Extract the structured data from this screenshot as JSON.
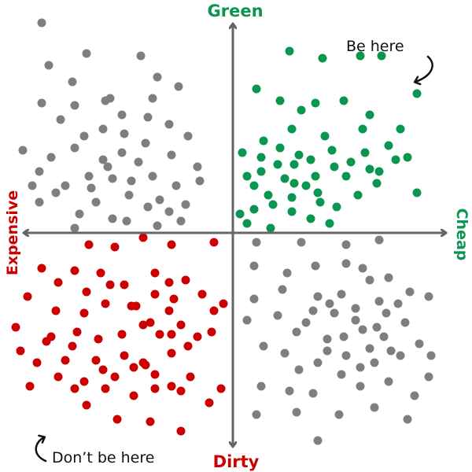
{
  "chart_data": {
    "type": "scatter",
    "axes": {
      "top": "Green",
      "bottom": "Dirty",
      "left": "Expensive",
      "right": "Cheap"
    },
    "annotations": [
      {
        "text": "Be here",
        "quadrant": "top-right"
      },
      {
        "text": "Don’t be here",
        "quadrant": "bottom-left"
      }
    ],
    "grid": false,
    "xlim": [
      -1,
      1
    ],
    "ylim": [
      -1,
      1
    ],
    "series": [
      {
        "quadrant": "top-left",
        "color": "#7f7f7f",
        "points": [
          [
            -0.81,
            0.89
          ],
          [
            -0.62,
            0.76
          ],
          [
            -0.68,
            0.64
          ],
          [
            -0.54,
            0.56
          ],
          [
            -0.39,
            0.75
          ],
          [
            -0.32,
            0.66
          ],
          [
            -0.78,
            0.71
          ],
          [
            -0.67,
            0.54
          ],
          [
            -0.52,
            0.57
          ],
          [
            -0.47,
            0.5
          ],
          [
            -0.34,
            0.57
          ],
          [
            -0.23,
            0.62
          ],
          [
            -0.81,
            0.55
          ],
          [
            -0.73,
            0.48
          ],
          [
            -0.63,
            0.41
          ],
          [
            -0.55,
            0.44
          ],
          [
            -0.46,
            0.42
          ],
          [
            -0.36,
            0.49
          ],
          [
            -0.27,
            0.46
          ],
          [
            -0.19,
            0.41
          ],
          [
            -0.89,
            0.35
          ],
          [
            -0.77,
            0.32
          ],
          [
            -0.67,
            0.36
          ],
          [
            -0.55,
            0.31
          ],
          [
            -0.47,
            0.34
          ],
          [
            -0.37,
            0.38
          ],
          [
            -0.26,
            0.33
          ],
          [
            -0.15,
            0.28
          ],
          [
            -0.82,
            0.26
          ],
          [
            -0.71,
            0.2
          ],
          [
            -0.61,
            0.24
          ],
          [
            -0.51,
            0.23
          ],
          [
            -0.43,
            0.22
          ],
          [
            -0.34,
            0.24
          ],
          [
            -0.24,
            0.2
          ],
          [
            -0.14,
            0.22
          ],
          [
            -0.58,
            0.13
          ],
          [
            -0.44,
            0.16
          ],
          [
            -0.31,
            0.14
          ],
          [
            -0.65,
            0.08
          ],
          [
            -0.75,
            0.17
          ],
          [
            -0.85,
            0.2
          ],
          [
            -0.27,
            0.09
          ],
          [
            -0.45,
            0.05
          ],
          [
            -0.32,
            0.03
          ],
          [
            -0.22,
            0.05
          ],
          [
            -0.82,
            0.13
          ],
          [
            -0.53,
            0.28
          ],
          [
            -0.4,
            0.3
          ],
          [
            -0.6,
            0.19
          ],
          [
            -0.51,
            0.06
          ],
          [
            -0.67,
            0.02
          ],
          [
            -0.36,
            0.11
          ],
          [
            -0.2,
            0.12
          ]
        ]
      },
      {
        "quadrant": "top-right",
        "color": "#0a9650",
        "points": [
          [
            0.24,
            0.77
          ],
          [
            0.38,
            0.74
          ],
          [
            0.54,
            0.75
          ],
          [
            0.63,
            0.75
          ],
          [
            0.78,
            0.59
          ],
          [
            0.1,
            0.61
          ],
          [
            0.2,
            0.56
          ],
          [
            0.35,
            0.55
          ],
          [
            0.47,
            0.56
          ],
          [
            0.58,
            0.5
          ],
          [
            0.29,
            0.52
          ],
          [
            0.13,
            0.39
          ],
          [
            0.25,
            0.44
          ],
          [
            0.39,
            0.41
          ],
          [
            0.55,
            0.44
          ],
          [
            0.71,
            0.44
          ],
          [
            0.04,
            0.34
          ],
          [
            0.12,
            0.32
          ],
          [
            0.2,
            0.36
          ],
          [
            0.26,
            0.29
          ],
          [
            0.33,
            0.31
          ],
          [
            0.42,
            0.35
          ],
          [
            0.56,
            0.34
          ],
          [
            0.69,
            0.31
          ],
          [
            0.09,
            0.2
          ],
          [
            0.15,
            0.16
          ],
          [
            0.26,
            0.21
          ],
          [
            0.35,
            0.24
          ],
          [
            0.43,
            0.28
          ],
          [
            0.61,
            0.21
          ],
          [
            0.78,
            0.17
          ],
          [
            0.03,
            0.08
          ],
          [
            0.09,
            0.1
          ],
          [
            0.17,
            0.12
          ],
          [
            0.25,
            0.15
          ],
          [
            0.37,
            0.13
          ],
          [
            0.53,
            0.16
          ],
          [
            0.62,
            0.26
          ],
          [
            0.44,
            0.11
          ],
          [
            0.06,
            0.04
          ],
          [
            0.16,
            0.02
          ],
          [
            0.25,
            0.09
          ],
          [
            0.33,
            0.06
          ],
          [
            0.41,
            0.04
          ],
          [
            0.74,
            0.32
          ],
          [
            0.06,
            0.24
          ],
          [
            0.19,
            0.29
          ],
          [
            0.31,
            0.2
          ],
          [
            0.48,
            0.24
          ],
          [
            0.58,
            0.27
          ],
          [
            0.12,
            0.26
          ],
          [
            0.22,
            0.23
          ],
          [
            0.28,
            0.33
          ],
          [
            0.36,
            0.17
          ],
          [
            0.5,
            0.3
          ],
          [
            0.66,
            0.37
          ]
        ]
      },
      {
        "quadrant": "bottom-left",
        "color": "#cc0000",
        "points": [
          [
            -0.61,
            -0.05
          ],
          [
            -0.5,
            -0.06
          ],
          [
            -0.38,
            -0.02
          ],
          [
            -0.26,
            -0.05
          ],
          [
            -0.08,
            -0.04
          ],
          [
            -0.81,
            -0.15
          ],
          [
            -0.67,
            -0.16
          ],
          [
            -0.56,
            -0.17
          ],
          [
            -0.46,
            -0.22
          ],
          [
            -0.33,
            -0.17
          ],
          [
            -0.27,
            -0.21
          ],
          [
            -0.2,
            -0.2
          ],
          [
            -0.74,
            -0.21
          ],
          [
            -0.62,
            -0.25
          ],
          [
            -0.52,
            -0.22
          ],
          [
            -0.41,
            -0.31
          ],
          [
            -0.33,
            -0.26
          ],
          [
            -0.25,
            -0.28
          ],
          [
            -0.13,
            -0.26
          ],
          [
            -0.08,
            -0.33
          ],
          [
            -0.87,
            -0.27
          ],
          [
            -0.75,
            -0.33
          ],
          [
            -0.63,
            -0.34
          ],
          [
            -0.54,
            -0.3
          ],
          [
            -0.43,
            -0.31
          ],
          [
            -0.35,
            -0.38
          ],
          [
            -0.27,
            -0.33
          ],
          [
            -0.22,
            -0.39
          ],
          [
            -0.04,
            -0.3
          ],
          [
            -0.92,
            -0.4
          ],
          [
            -0.77,
            -0.44
          ],
          [
            -0.66,
            -0.42
          ],
          [
            -0.57,
            -0.45
          ],
          [
            -0.47,
            -0.43
          ],
          [
            -0.38,
            -0.39
          ],
          [
            -0.26,
            -0.43
          ],
          [
            -0.15,
            -0.44
          ],
          [
            -0.83,
            -0.55
          ],
          [
            -0.71,
            -0.54
          ],
          [
            -0.58,
            -0.54
          ],
          [
            -0.46,
            -0.52
          ],
          [
            -0.38,
            -0.55
          ],
          [
            -0.26,
            -0.51
          ],
          [
            -0.19,
            -0.48
          ],
          [
            -0.09,
            -0.42
          ],
          [
            -0.74,
            -0.61
          ],
          [
            -0.63,
            -0.63
          ],
          [
            -0.5,
            -0.61
          ],
          [
            -0.42,
            -0.57
          ],
          [
            -0.33,
            -0.6
          ],
          [
            -0.26,
            -0.65
          ],
          [
            -0.18,
            -0.61
          ],
          [
            -0.86,
            -0.65
          ],
          [
            -0.67,
            -0.66
          ],
          [
            -0.54,
            -0.66
          ],
          [
            -0.42,
            -0.69
          ],
          [
            -0.33,
            -0.66
          ],
          [
            -0.22,
            -0.67
          ],
          [
            -0.1,
            -0.72
          ],
          [
            -0.05,
            -0.66
          ],
          [
            -0.62,
            -0.73
          ],
          [
            -0.49,
            -0.79
          ],
          [
            -0.35,
            -0.8
          ],
          [
            -0.22,
            -0.84
          ],
          [
            -0.79,
            -0.46
          ],
          [
            -0.68,
            -0.48
          ],
          [
            -0.9,
            -0.5
          ],
          [
            -0.55,
            -0.58
          ],
          [
            -0.31,
            -0.43
          ],
          [
            -0.37,
            -0.56
          ]
        ]
      },
      {
        "quadrant": "bottom-right",
        "color": "#7f7f7f",
        "points": [
          [
            0.1,
            -0.04
          ],
          [
            0.29,
            -0.04
          ],
          [
            0.48,
            -0.05
          ],
          [
            0.62,
            -0.03
          ],
          [
            0.09,
            -0.14
          ],
          [
            0.23,
            -0.17
          ],
          [
            0.35,
            -0.14
          ],
          [
            0.48,
            -0.13
          ],
          [
            0.55,
            -0.15
          ],
          [
            0.66,
            -0.19
          ],
          [
            0.75,
            -0.25
          ],
          [
            0.09,
            -0.28
          ],
          [
            0.21,
            -0.24
          ],
          [
            0.36,
            -0.27
          ],
          [
            0.46,
            -0.26
          ],
          [
            0.58,
            -0.2
          ],
          [
            0.7,
            -0.3
          ],
          [
            0.31,
            -0.38
          ],
          [
            0.43,
            -0.34
          ],
          [
            0.52,
            -0.37
          ],
          [
            0.65,
            -0.34
          ],
          [
            0.83,
            -0.27
          ],
          [
            0.06,
            -0.37
          ],
          [
            0.27,
            -0.42
          ],
          [
            0.4,
            -0.45
          ],
          [
            0.55,
            -0.41
          ],
          [
            0.61,
            -0.4
          ],
          [
            0.73,
            -0.38
          ],
          [
            0.79,
            -0.47
          ],
          [
            0.13,
            -0.48
          ],
          [
            0.22,
            -0.51
          ],
          [
            0.36,
            -0.55
          ],
          [
            0.48,
            -0.52
          ],
          [
            0.58,
            -0.49
          ],
          [
            0.67,
            -0.5
          ],
          [
            0.84,
            -0.52
          ],
          [
            0.46,
            -0.6
          ],
          [
            0.6,
            -0.55
          ],
          [
            0.71,
            -0.52
          ],
          [
            0.83,
            -0.61
          ],
          [
            0.12,
            -0.65
          ],
          [
            0.24,
            -0.67
          ],
          [
            0.34,
            -0.68
          ],
          [
            0.54,
            -0.65
          ],
          [
            0.66,
            -0.63
          ],
          [
            0.77,
            -0.69
          ],
          [
            0.1,
            -0.77
          ],
          [
            0.27,
            -0.76
          ],
          [
            0.45,
            -0.77
          ],
          [
            0.6,
            -0.74
          ],
          [
            0.74,
            -0.79
          ],
          [
            0.36,
            -0.88
          ],
          [
            0.34,
            -0.33
          ],
          [
            0.47,
            -0.44
          ],
          [
            0.4,
            -0.5
          ],
          [
            0.54,
            -0.57
          ],
          [
            0.64,
            -0.44
          ],
          [
            0.19,
            -0.35
          ],
          [
            0.28,
            -0.58
          ],
          [
            0.41,
            -0.3
          ],
          [
            0.52,
            -0.32
          ],
          [
            0.62,
            -0.29
          ]
        ]
      }
    ]
  }
}
